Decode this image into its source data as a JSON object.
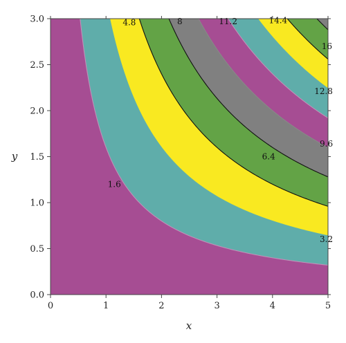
{
  "chart_data": {
    "type": "contour",
    "function": "x*y",
    "xlabel": "x",
    "ylabel": "y",
    "xlim": [
      0,
      5
    ],
    "ylim": [
      0,
      3
    ],
    "x_ticks": [
      "0",
      "1",
      "2",
      "3",
      "4",
      "5"
    ],
    "y_ticks": [
      "0.0",
      "0.5",
      "1.0",
      "1.5",
      "2.0",
      "2.5",
      "3.0"
    ],
    "grid": false,
    "legend": "none",
    "levels": [
      1.6,
      3.2,
      4.8,
      6.4,
      8,
      9.6,
      11.2,
      12.8,
      14.4,
      16
    ],
    "level_labels": [
      "1.6",
      "3.2",
      "4.8",
      "6.4",
      "8",
      "9.6",
      "11.2",
      "12.8",
      "14.4",
      "16"
    ],
    "contour_label_positions": [
      {
        "text": "1.6",
        "x": 1.15,
        "y": 1.2
      },
      {
        "text": "3.2",
        "x": 4.97,
        "y": 0.6
      },
      {
        "text": "4.8",
        "x": 1.42,
        "y": 2.96
      },
      {
        "text": "6.4",
        "x": 3.93,
        "y": 1.5
      },
      {
        "text": "8",
        "x": 2.33,
        "y": 2.97
      },
      {
        "text": "9.6",
        "x": 4.97,
        "y": 1.64
      },
      {
        "text": "11.2",
        "x": 3.2,
        "y": 2.97
      },
      {
        "text": "12.8",
        "x": 4.92,
        "y": 2.21
      },
      {
        "text": "14.4",
        "x": 4.1,
        "y": 2.98
      },
      {
        "text": "16",
        "x": 4.98,
        "y": 2.7
      }
    ],
    "band_colors": [
      "#a64d93",
      "#5fadaa",
      "#f9e921",
      "#63a346",
      "#808080",
      "#a64d93",
      "#5fadaa",
      "#f9e921",
      "#63a346",
      "#808080",
      "#a64d93"
    ],
    "line_colors": [
      "#c090b8",
      "#60b0a8",
      "#111111",
      "#111111",
      "#888888",
      "#c090b8",
      "#60b0a8",
      "#111111",
      "#111111",
      "#888888"
    ]
  }
}
